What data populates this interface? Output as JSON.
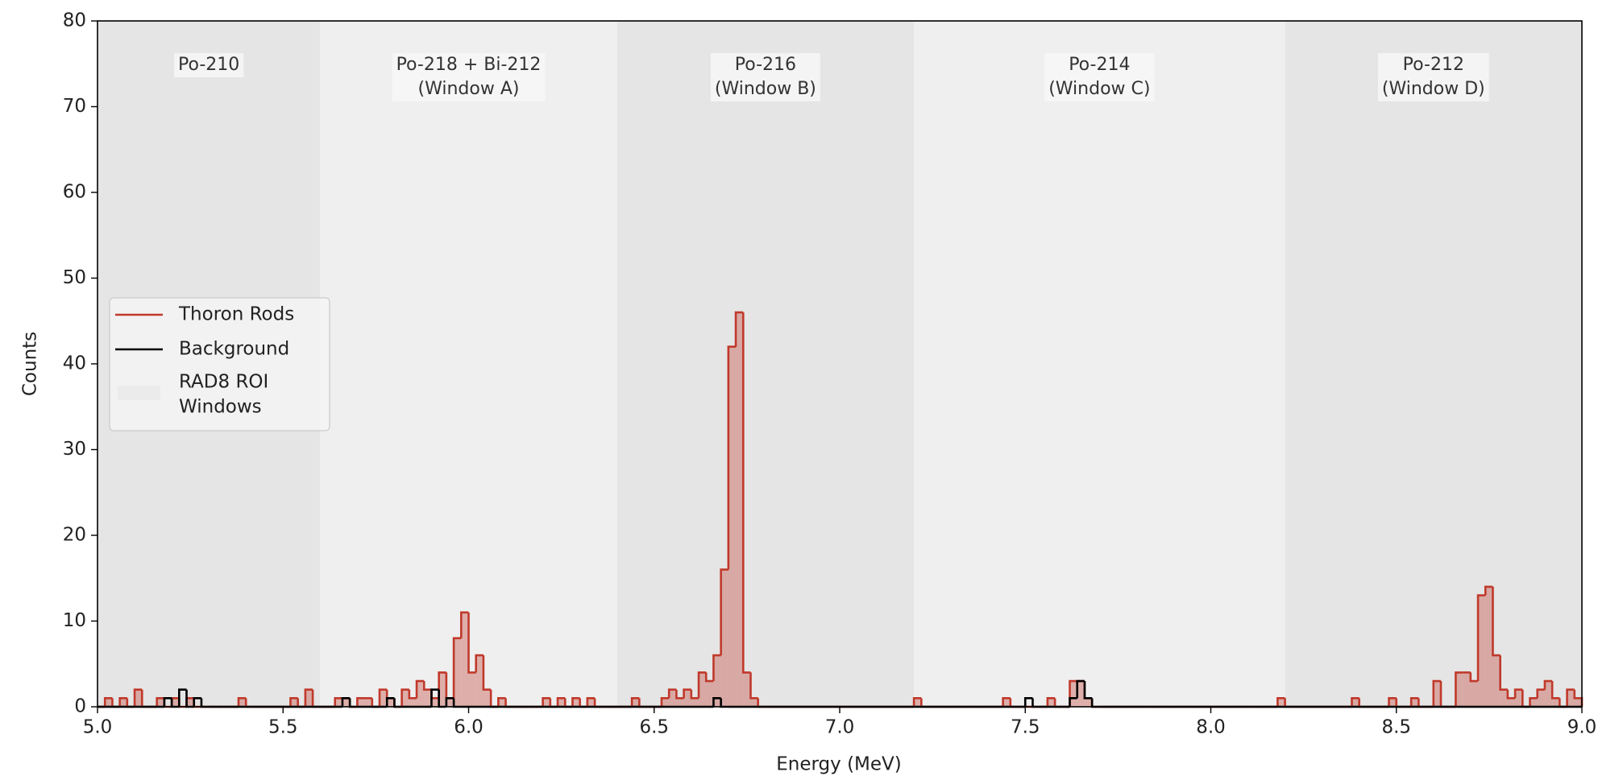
{
  "chart_data": {
    "type": "histogram",
    "x_label": "Energy (MeV)",
    "y_label": "Counts",
    "xlim": [
      5,
      9
    ],
    "ylim": [
      0,
      80
    ],
    "xticks": [
      {
        "value": 5,
        "label": "5.0"
      },
      5.5,
      {
        "value": 6,
        "label": "6.0"
      },
      6.5,
      {
        "value": 7,
        "label": "7.0"
      },
      7.5,
      {
        "value": 8,
        "label": "8.0"
      },
      8.5,
      {
        "value": 9,
        "label": "9.0"
      }
    ],
    "yticks": [
      0,
      10,
      20,
      30,
      40,
      50,
      60,
      70,
      80
    ],
    "legend_loc": "center left",
    "regions": [
      {
        "label": [
          "Po-210"
        ],
        "range": [
          5,
          5.6
        ],
        "color": "#e5e5e5"
      },
      {
        "label": [
          "Po-218 + Bi-212",
          "(Window A)"
        ],
        "range": [
          5.6,
          6.4
        ],
        "color": "#efefef"
      },
      {
        "label": [
          "Po-216",
          "(Window B)"
        ],
        "range": [
          6.4,
          7.2
        ],
        "color": "#e5e5e5"
      },
      {
        "label": [
          "Po-214",
          "(Window C)"
        ],
        "range": [
          7.2,
          8.2
        ],
        "color": "#efefef"
      },
      {
        "label": [
          "Po-212",
          "(Window D)"
        ],
        "range": [
          8.2,
          9
        ],
        "color": "#e5e5e5"
      }
    ],
    "region_legend": [
      "RAD8 ROI",
      "Windows"
    ],
    "region_legend_color": "#ebebeb",
    "bins": [
      5,
      5.02,
      5.04,
      5.06,
      5.08,
      5.1,
      5.12,
      5.14,
      5.16,
      5.18,
      5.2,
      5.22,
      5.24,
      5.26,
      5.28,
      5.3,
      5.32,
      5.34,
      5.36,
      5.38,
      5.4,
      5.42,
      5.44,
      5.46,
      5.48,
      5.5,
      5.52,
      5.54,
      5.56,
      5.58,
      5.6,
      5.62,
      5.64,
      5.66,
      5.68,
      5.7,
      5.72,
      5.74,
      5.76,
      5.78,
      5.8,
      5.82,
      5.84,
      5.86,
      5.88,
      5.9,
      5.92,
      5.94,
      5.96,
      5.98,
      6,
      6.02,
      6.04,
      6.06,
      6.08,
      6.1,
      6.12,
      6.14,
      6.16,
      6.18,
      6.2,
      6.22,
      6.24,
      6.26,
      6.28,
      6.3,
      6.32,
      6.34,
      6.36,
      6.38,
      6.4,
      6.42,
      6.44,
      6.46,
      6.48,
      6.5,
      6.52,
      6.54,
      6.56,
      6.58,
      6.6,
      6.62,
      6.64,
      6.66,
      6.68,
      6.7,
      6.72,
      6.74,
      6.76,
      6.78,
      6.8,
      6.82,
      6.84,
      6.86,
      6.88,
      6.9,
      6.92,
      6.94,
      6.96,
      6.98,
      7,
      7.02,
      7.04,
      7.06,
      7.08,
      7.1,
      7.12,
      7.14,
      7.16,
      7.18,
      7.2,
      7.22,
      7.24,
      7.26,
      7.28,
      7.3,
      7.32,
      7.34,
      7.36,
      7.38,
      7.4,
      7.42,
      7.44,
      7.46,
      7.48,
      7.5,
      7.52,
      7.54,
      7.56,
      7.58,
      7.6,
      7.62,
      7.64,
      7.66,
      7.68,
      7.7,
      7.72,
      7.74,
      7.76,
      7.78,
      7.8,
      7.82,
      7.84,
      7.86,
      7.88,
      7.9,
      7.92,
      7.94,
      7.96,
      7.98,
      8,
      8.02,
      8.04,
      8.06,
      8.08,
      8.1,
      8.12,
      8.14,
      8.16,
      8.18,
      8.2,
      8.22,
      8.24,
      8.26,
      8.28,
      8.3,
      8.32,
      8.34,
      8.36,
      8.38,
      8.4,
      8.42,
      8.44,
      8.46,
      8.48,
      8.5,
      8.52,
      8.54,
      8.56,
      8.58,
      8.6,
      8.62,
      8.64,
      8.66,
      8.68,
      8.7,
      8.72,
      8.74,
      8.76,
      8.78,
      8.8,
      8.82,
      8.84,
      8.86,
      8.88,
      8.9,
      8.92,
      8.94,
      8.96,
      8.98,
      9
    ],
    "series": [
      {
        "name": "Thoron Rods",
        "color": "#c0392b",
        "fill": true,
        "values": [
          0,
          1,
          0,
          1,
          0,
          2,
          0,
          0,
          1,
          0,
          1,
          0,
          1,
          0,
          0,
          0,
          0,
          0,
          0,
          1,
          0,
          0,
          0,
          0,
          0,
          0,
          1,
          0,
          2,
          0,
          0,
          0,
          1,
          1,
          0,
          1,
          1,
          0,
          2,
          1,
          0,
          2,
          1,
          3,
          2,
          1,
          4,
          1,
          8,
          11,
          4,
          6,
          2,
          0,
          1,
          0,
          0,
          0,
          0,
          0,
          1,
          0,
          1,
          0,
          1,
          0,
          1,
          0,
          0,
          0,
          0,
          0,
          1,
          0,
          0,
          0,
          1,
          2,
          1,
          2,
          1,
          4,
          3,
          6,
          16,
          42,
          46,
          4,
          1,
          0,
          0,
          0,
          0,
          0,
          0,
          0,
          0,
          0,
          0,
          0,
          0,
          0,
          0,
          0,
          0,
          0,
          0,
          0,
          0,
          0,
          1,
          0,
          0,
          0,
          0,
          0,
          0,
          0,
          0,
          0,
          0,
          0,
          1,
          0,
          0,
          0,
          0,
          0,
          1,
          0,
          0,
          3,
          3,
          1,
          0,
          0,
          0,
          0,
          0,
          0,
          0,
          0,
          0,
          0,
          0,
          0,
          0,
          0,
          0,
          0,
          0,
          0,
          0,
          0,
          0,
          0,
          0,
          0,
          0,
          1,
          0,
          0,
          0,
          0,
          0,
          0,
          0,
          0,
          0,
          1,
          0,
          0,
          0,
          0,
          1,
          0,
          0,
          1,
          0,
          0,
          3,
          0,
          0,
          4,
          4,
          3,
          13,
          14,
          6,
          2,
          1,
          2,
          0,
          1,
          2,
          3,
          1,
          0,
          2,
          1
        ]
      },
      {
        "name": "Background",
        "color": "#000000",
        "fill": false,
        "values": [
          0,
          0,
          0,
          0,
          0,
          0,
          0,
          0,
          0,
          1,
          0,
          2,
          0,
          1,
          0,
          0,
          0,
          0,
          0,
          0,
          0,
          0,
          0,
          0,
          0,
          0,
          0,
          0,
          0,
          0,
          0,
          0,
          0,
          1,
          0,
          0,
          0,
          0,
          0,
          1,
          0,
          0,
          0,
          0,
          0,
          2,
          0,
          1,
          0,
          0,
          0,
          0,
          0,
          0,
          0,
          0,
          0,
          0,
          0,
          0,
          0,
          0,
          0,
          0,
          0,
          0,
          0,
          0,
          0,
          0,
          0,
          0,
          0,
          0,
          0,
          0,
          0,
          0,
          0,
          0,
          0,
          0,
          0,
          1,
          0,
          0,
          0,
          0,
          0,
          0,
          0,
          0,
          0,
          0,
          0,
          0,
          0,
          0,
          0,
          0,
          0,
          0,
          0,
          0,
          0,
          0,
          0,
          0,
          0,
          0,
          0,
          0,
          0,
          0,
          0,
          0,
          0,
          0,
          0,
          0,
          0,
          0,
          0,
          0,
          0,
          1,
          0,
          0,
          0,
          0,
          0,
          1,
          3,
          1,
          0,
          0,
          0,
          0,
          0,
          0,
          0,
          0,
          0,
          0,
          0,
          0,
          0,
          0,
          0,
          0,
          0,
          0,
          0,
          0,
          0,
          0,
          0,
          0,
          0,
          0,
          0,
          0,
          0,
          0,
          0,
          0,
          0,
          0,
          0,
          0,
          0,
          0,
          0,
          0,
          0,
          0,
          0,
          0,
          0,
          0,
          0,
          0,
          0,
          0,
          0,
          0,
          0,
          0,
          0,
          0,
          0,
          0,
          0,
          0,
          0,
          0,
          0,
          0,
          0,
          0
        ]
      }
    ]
  }
}
